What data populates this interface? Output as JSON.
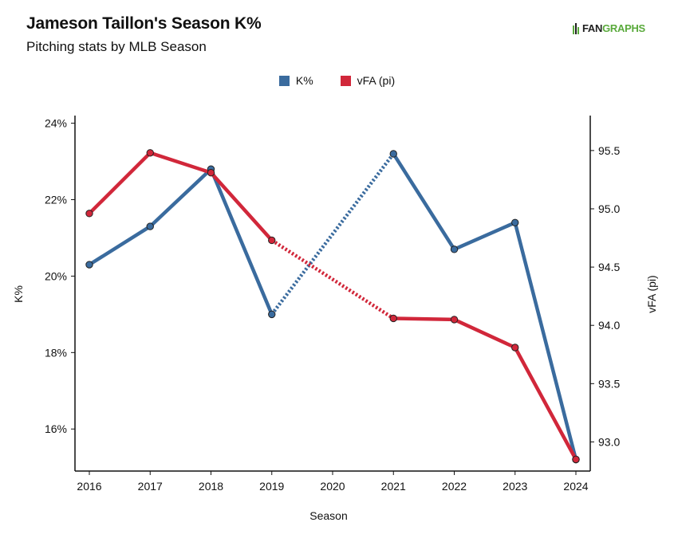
{
  "header": {
    "title": "Jameson Taillon's Season K%",
    "subtitle": "Pitching stats by MLB Season"
  },
  "logo": {
    "text_a": "FAN",
    "text_b": "GRAPHS",
    "brand_color": "#5aaa3c"
  },
  "chart_data": {
    "type": "line",
    "xlabel": "Season",
    "ylabel": "K%",
    "y2label": "vFA (pi)",
    "categories": [
      "2016",
      "2017",
      "2018",
      "2019",
      "2020",
      "2021",
      "2022",
      "2023",
      "2024"
    ],
    "ylim": [
      14.9,
      24.2
    ],
    "y2lim": [
      92.75,
      95.8
    ],
    "yticks": [
      16,
      18,
      20,
      22,
      24
    ],
    "yticklabels": [
      "16%",
      "18%",
      "20%",
      "22%",
      "24%"
    ],
    "y2ticks": [
      93.0,
      93.5,
      94.0,
      94.5,
      95.0,
      95.5
    ],
    "y2ticklabels": [
      "93.0",
      "93.5",
      "94.0",
      "94.5",
      "95.0",
      "95.5"
    ],
    "legend_position": "top-center",
    "grid": false,
    "series": [
      {
        "name": "K%",
        "axis": "left",
        "color": "#3a6b9e",
        "values": [
          20.3,
          21.3,
          22.8,
          19.0,
          null,
          23.2,
          20.7,
          21.4,
          15.2
        ]
      },
      {
        "name": "vFA (pi)",
        "axis": "right",
        "color": "#d1273a",
        "values": [
          94.96,
          95.48,
          95.31,
          94.73,
          null,
          94.06,
          94.05,
          93.81,
          92.85
        ]
      }
    ]
  }
}
